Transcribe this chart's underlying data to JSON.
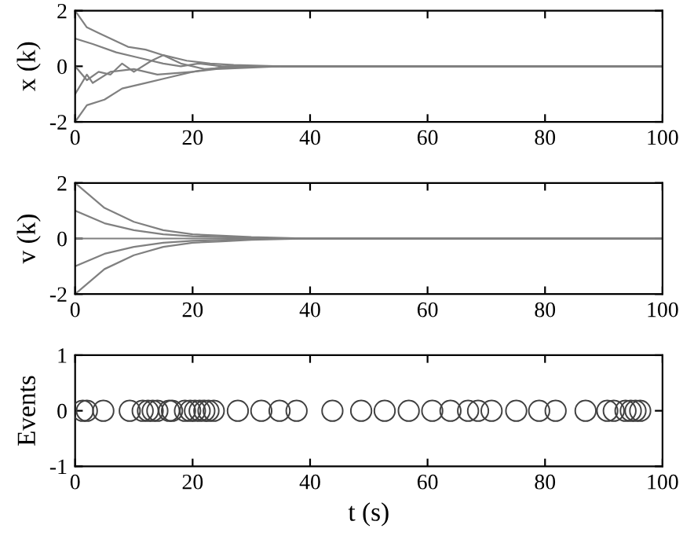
{
  "chart_data": [
    {
      "type": "line",
      "ylabel": "x (k)",
      "xlim": [
        0,
        100
      ],
      "xticks": [
        0,
        20,
        40,
        60,
        80,
        100
      ],
      "ylim": [
        -2,
        2
      ],
      "yticks": [
        -2,
        0,
        2
      ],
      "grid": false,
      "legend": false,
      "series": [
        {
          "color": "#808080",
          "x": [
            0,
            2,
            4,
            7,
            9,
            12,
            15,
            19,
            23,
            27,
            35,
            100
          ],
          "values": [
            2,
            1.4,
            1.2,
            0.9,
            0.7,
            0.6,
            0.4,
            0.2,
            0.1,
            0.05,
            0,
            0
          ]
        },
        {
          "color": "#808080",
          "x": [
            0,
            3,
            7,
            11,
            15,
            18,
            21,
            25,
            35,
            100
          ],
          "values": [
            1,
            0.8,
            0.5,
            0.3,
            0.1,
            0,
            0.1,
            0,
            0,
            0
          ]
        },
        {
          "color": "#808080",
          "x": [
            0,
            2,
            4,
            6,
            8,
            10,
            13,
            15,
            18,
            22,
            30,
            100
          ],
          "values": [
            0,
            -0.5,
            -0.2,
            -0.3,
            0.1,
            -0.2,
            0.2,
            0.4,
            0.1,
            -0.1,
            0,
            0
          ]
        },
        {
          "color": "#808080",
          "x": [
            0,
            2,
            3,
            6,
            10,
            14,
            20,
            26,
            100
          ],
          "values": [
            -1,
            -0.3,
            -0.6,
            -0.2,
            -0.1,
            -0.3,
            -0.2,
            0,
            0
          ]
        },
        {
          "color": "#808080",
          "x": [
            0,
            2,
            5,
            8,
            12,
            16,
            20,
            24,
            35,
            100
          ],
          "values": [
            -2,
            -1.4,
            -1.2,
            -0.8,
            -0.6,
            -0.4,
            -0.2,
            -0.1,
            0,
            0
          ]
        }
      ]
    },
    {
      "type": "line",
      "ylabel": "v (k)",
      "xlim": [
        0,
        100
      ],
      "xticks": [
        0,
        20,
        40,
        60,
        80,
        100
      ],
      "ylim": [
        -2,
        2
      ],
      "yticks": [
        -2,
        0,
        2
      ],
      "grid": false,
      "legend": false,
      "series": [
        {
          "color": "#808080",
          "x": [
            0,
            5,
            10,
            15,
            20,
            25,
            30,
            40,
            100
          ],
          "values": [
            2,
            1.1,
            0.6,
            0.3,
            0.15,
            0.1,
            0.05,
            0,
            0
          ]
        },
        {
          "color": "#808080",
          "x": [
            0,
            5,
            10,
            15,
            20,
            25,
            30,
            40,
            100
          ],
          "values": [
            1,
            0.55,
            0.3,
            0.15,
            0.08,
            0.05,
            0.02,
            0,
            0
          ]
        },
        {
          "color": "#808080",
          "x": [
            0,
            100
          ],
          "values": [
            0,
            0
          ]
        },
        {
          "color": "#808080",
          "x": [
            0,
            5,
            10,
            15,
            20,
            25,
            30,
            40,
            100
          ],
          "values": [
            -1,
            -0.55,
            -0.3,
            -0.15,
            -0.08,
            -0.05,
            -0.02,
            0,
            0
          ]
        },
        {
          "color": "#808080",
          "x": [
            0,
            5,
            10,
            15,
            20,
            25,
            30,
            40,
            100
          ],
          "values": [
            -2,
            -1.1,
            -0.6,
            -0.3,
            -0.15,
            -0.1,
            -0.05,
            0,
            0
          ]
        }
      ]
    },
    {
      "type": "scatter",
      "ylabel": "Events",
      "xlabel": "t (s)",
      "xlim": [
        0,
        100
      ],
      "xticks": [
        0,
        20,
        40,
        60,
        80,
        100
      ],
      "ylim": [
        -1,
        1
      ],
      "yticks": [
        -1,
        0,
        1
      ],
      "grid": false,
      "legend": false,
      "marker": "circle",
      "series": [
        {
          "color": "#404040",
          "x": [
            1.3,
            2,
            4.8,
            9.3,
            11.5,
            12.4,
            13.2,
            14,
            16,
            16.5,
            18.7,
            19.6,
            20.4,
            21.2,
            22,
            22.7,
            23.6,
            27.7,
            31.7,
            34.8,
            37.7,
            43.8,
            48.7,
            52.7,
            56.8,
            60.8,
            63.9,
            66.9,
            68.6,
            70.9,
            75.1,
            79,
            81.8,
            86.9,
            90.6,
            91.7,
            93.7,
            94.6,
            95.4,
            96.2
          ],
          "values": [
            0,
            0,
            0,
            0,
            0,
            0,
            0,
            0,
            0,
            0,
            0,
            0,
            0,
            0,
            0,
            0,
            0,
            0,
            0,
            0,
            0,
            0,
            0,
            0,
            0,
            0,
            0,
            0,
            0,
            0,
            0,
            0,
            0,
            0,
            0,
            0,
            0,
            0,
            0,
            0
          ]
        }
      ]
    }
  ]
}
